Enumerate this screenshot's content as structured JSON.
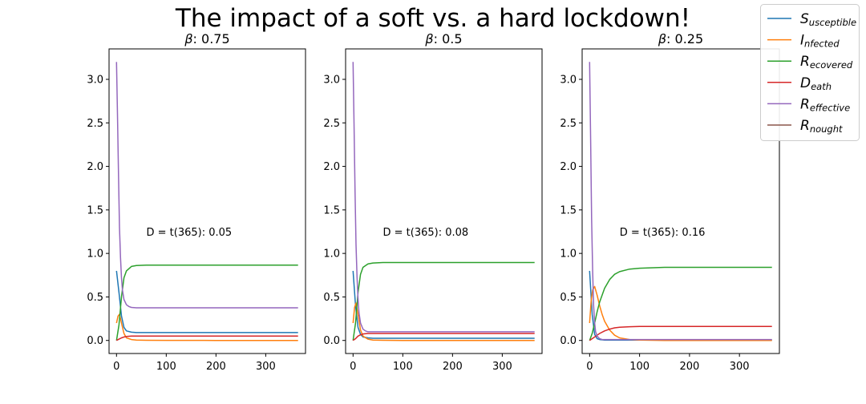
{
  "title": "The impact of a soft vs. a hard lockdown!",
  "legend": [
    {
      "base": "S",
      "sub": "usceptible",
      "color": "#1f77b4"
    },
    {
      "base": "I",
      "sub": "nfected",
      "color": "#ff7f0e"
    },
    {
      "base": "R",
      "sub": "ecovered",
      "color": "#2ca02c"
    },
    {
      "base": "D",
      "sub": "eath",
      "color": "#d62728"
    },
    {
      "base": "R",
      "sub": "effective",
      "color": "#9467bd"
    },
    {
      "base": "R",
      "sub": "nought",
      "color": "#8c564b"
    }
  ],
  "chart_data": [
    {
      "type": "line",
      "title_symbol": "β",
      "title_value": ": 0.75",
      "annotation": "D = t(365): 0.05",
      "xlim": [
        -15,
        380
      ],
      "ylim": [
        -0.15,
        3.35
      ],
      "xticks": [
        0,
        100,
        200,
        300
      ],
      "yticks": [
        0.0,
        0.5,
        1.0,
        1.5,
        2.0,
        2.5,
        3.0
      ],
      "ytick_labels": [
        "0.0",
        "0.5",
        "1.0",
        "1.5",
        "2.0",
        "2.5",
        "3.0"
      ],
      "series": [
        {
          "key": "S",
          "color": "#1f77b4",
          "x": [
            0,
            5,
            10,
            15,
            20,
            30,
            40,
            60,
            100,
            200,
            365
          ],
          "y": [
            0.8,
            0.55,
            0.28,
            0.15,
            0.11,
            0.095,
            0.09,
            0.09,
            0.09,
            0.09,
            0.09
          ]
        },
        {
          "key": "I",
          "color": "#ff7f0e",
          "x": [
            0,
            3,
            6,
            10,
            15,
            20,
            30,
            40,
            60,
            100,
            200,
            365
          ],
          "y": [
            0.2,
            0.28,
            0.3,
            0.2,
            0.08,
            0.03,
            0.01,
            0.005,
            0.002,
            0.001,
            0.0,
            0.0
          ]
        },
        {
          "key": "R",
          "color": "#2ca02c",
          "x": [
            0,
            5,
            10,
            15,
            20,
            30,
            40,
            60,
            100,
            200,
            365
          ],
          "y": [
            0.0,
            0.18,
            0.5,
            0.72,
            0.8,
            0.85,
            0.86,
            0.865,
            0.865,
            0.865,
            0.865
          ]
        },
        {
          "key": "D",
          "color": "#d62728",
          "x": [
            0,
            5,
            10,
            15,
            20,
            30,
            60,
            365
          ],
          "y": [
            0.0,
            0.015,
            0.03,
            0.04,
            0.045,
            0.05,
            0.05,
            0.05
          ]
        },
        {
          "key": "Reff",
          "color": "#9467bd",
          "x": [
            0,
            2,
            4,
            6,
            8,
            10,
            12,
            15,
            20,
            25,
            30,
            40,
            60,
            100,
            200,
            365
          ],
          "y": [
            3.2,
            2.6,
            1.9,
            1.3,
            0.95,
            0.72,
            0.58,
            0.47,
            0.41,
            0.39,
            0.38,
            0.375,
            0.375,
            0.375,
            0.375,
            0.375
          ]
        }
      ]
    },
    {
      "type": "line",
      "title_symbol": "β",
      "title_value": ": 0.5",
      "annotation": "D = t(365): 0.08",
      "xlim": [
        -15,
        380
      ],
      "ylim": [
        -0.15,
        3.35
      ],
      "xticks": [
        0,
        100,
        200,
        300
      ],
      "yticks": [
        0.0,
        0.5,
        1.0,
        1.5,
        2.0,
        2.5,
        3.0
      ],
      "ytick_labels": [
        "0.0",
        "0.5",
        "1.0",
        "1.5",
        "2.0",
        "2.5",
        "3.0"
      ],
      "series": [
        {
          "key": "S",
          "color": "#1f77b4",
          "x": [
            0,
            5,
            10,
            15,
            20,
            30,
            40,
            60,
            100,
            200,
            365
          ],
          "y": [
            0.8,
            0.4,
            0.15,
            0.07,
            0.04,
            0.03,
            0.025,
            0.025,
            0.025,
            0.025,
            0.025
          ]
        },
        {
          "key": "I",
          "color": "#ff7f0e",
          "x": [
            0,
            3,
            6,
            10,
            15,
            20,
            30,
            40,
            60,
            100,
            200,
            365
          ],
          "y": [
            0.2,
            0.38,
            0.43,
            0.3,
            0.12,
            0.05,
            0.015,
            0.005,
            0.002,
            0.0,
            0.0,
            0.0
          ]
        },
        {
          "key": "R",
          "color": "#2ca02c",
          "x": [
            0,
            5,
            10,
            15,
            20,
            30,
            40,
            60,
            100,
            200,
            365
          ],
          "y": [
            0.0,
            0.2,
            0.55,
            0.76,
            0.84,
            0.88,
            0.89,
            0.895,
            0.895,
            0.895,
            0.895
          ]
        },
        {
          "key": "D",
          "color": "#d62728",
          "x": [
            0,
            5,
            10,
            15,
            20,
            30,
            60,
            365
          ],
          "y": [
            0.0,
            0.02,
            0.05,
            0.065,
            0.075,
            0.08,
            0.08,
            0.08
          ]
        },
        {
          "key": "Reff",
          "color": "#9467bd",
          "x": [
            0,
            2,
            4,
            6,
            8,
            10,
            12,
            15,
            20,
            25,
            30,
            40,
            60,
            100,
            200,
            365
          ],
          "y": [
            3.2,
            2.5,
            1.7,
            1.1,
            0.72,
            0.48,
            0.32,
            0.2,
            0.13,
            0.11,
            0.1,
            0.1,
            0.1,
            0.1,
            0.1,
            0.1
          ]
        }
      ]
    },
    {
      "type": "line",
      "title_symbol": "β",
      "title_value": ": 0.25",
      "annotation": "D = t(365): 0.16",
      "xlim": [
        -15,
        380
      ],
      "ylim": [
        -0.15,
        3.35
      ],
      "xticks": [
        0,
        100,
        200,
        300
      ],
      "yticks": [
        0.0,
        0.5,
        1.0,
        1.5,
        2.0,
        2.5,
        3.0
      ],
      "ytick_labels": [
        "0.0",
        "0.5",
        "1.0",
        "1.5",
        "2.0",
        "2.5",
        "3.0"
      ],
      "series": [
        {
          "key": "S",
          "color": "#1f77b4",
          "x": [
            0,
            5,
            10,
            15,
            20,
            30,
            40,
            60,
            100,
            200,
            365
          ],
          "y": [
            0.8,
            0.3,
            0.07,
            0.02,
            0.01,
            0.005,
            0.005,
            0.005,
            0.005,
            0.005,
            0.005
          ]
        },
        {
          "key": "I",
          "color": "#ff7f0e",
          "x": [
            0,
            3,
            6,
            10,
            15,
            20,
            25,
            30,
            40,
            50,
            60,
            80,
            100,
            150,
            200,
            365
          ],
          "y": [
            0.2,
            0.45,
            0.58,
            0.62,
            0.52,
            0.4,
            0.3,
            0.22,
            0.12,
            0.06,
            0.03,
            0.01,
            0.005,
            0.0,
            0.0,
            0.0
          ]
        },
        {
          "key": "R",
          "color": "#2ca02c",
          "x": [
            0,
            5,
            10,
            15,
            20,
            30,
            40,
            50,
            60,
            80,
            100,
            150,
            200,
            365
          ],
          "y": [
            0.0,
            0.08,
            0.2,
            0.33,
            0.44,
            0.6,
            0.7,
            0.76,
            0.79,
            0.82,
            0.83,
            0.84,
            0.84,
            0.84
          ]
        },
        {
          "key": "D",
          "color": "#d62728",
          "x": [
            0,
            5,
            10,
            15,
            20,
            30,
            40,
            50,
            60,
            80,
            100,
            200,
            365
          ],
          "y": [
            0.0,
            0.02,
            0.04,
            0.06,
            0.08,
            0.11,
            0.13,
            0.145,
            0.152,
            0.158,
            0.16,
            0.16,
            0.16
          ]
        },
        {
          "key": "Reff",
          "color": "#9467bd",
          "x": [
            0,
            2,
            4,
            6,
            8,
            10,
            12,
            15,
            20,
            25,
            30,
            40,
            60,
            100,
            200,
            365
          ],
          "y": [
            3.2,
            2.3,
            1.4,
            0.8,
            0.4,
            0.2,
            0.1,
            0.05,
            0.02,
            0.01,
            0.01,
            0.01,
            0.01,
            0.01,
            0.01,
            0.01
          ]
        }
      ]
    }
  ]
}
